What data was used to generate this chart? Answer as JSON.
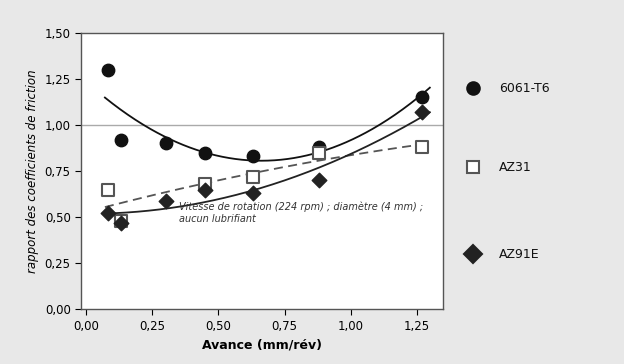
{
  "xlabel": "Avance (mm/rév)",
  "ylabel": "rapport des coefficients de friction",
  "annotation_line1": "Vitesse de rotation (224 rpm) ; diamètre (4 mm) ;",
  "annotation_line2": "aucun lubrifiant",
  "x6061": [
    0.08,
    0.13,
    0.3,
    0.45,
    0.63,
    0.88,
    1.27
  ],
  "y6061": [
    1.3,
    0.92,
    0.9,
    0.85,
    0.83,
    0.88,
    1.15
  ],
  "xAZ31": [
    0.08,
    0.13,
    0.45,
    0.63,
    0.88,
    1.27
  ],
  "yAZ31": [
    0.65,
    0.48,
    0.68,
    0.72,
    0.85,
    0.88
  ],
  "xAZ91E": [
    0.08,
    0.13,
    0.3,
    0.45,
    0.63,
    0.88,
    1.27
  ],
  "yAZ91E": [
    0.52,
    0.47,
    0.59,
    0.65,
    0.63,
    0.7,
    1.07
  ],
  "xlim": [
    -0.02,
    1.35
  ],
  "ylim": [
    0.0,
    1.5
  ],
  "xticks": [
    0.0,
    0.25,
    0.5,
    0.75,
    1.0,
    1.25
  ],
  "yticks": [
    0.0,
    0.25,
    0.5,
    0.75,
    1.0,
    1.25,
    1.5
  ],
  "color_6061": "#111111",
  "color_AZ31": "#555555",
  "color_AZ91E": "#222222",
  "ref_line_color": "#aaaaaa",
  "fig_bg": "#cccccc",
  "plot_bg": "#ffffff",
  "outer_bg": "#e8e8e8"
}
